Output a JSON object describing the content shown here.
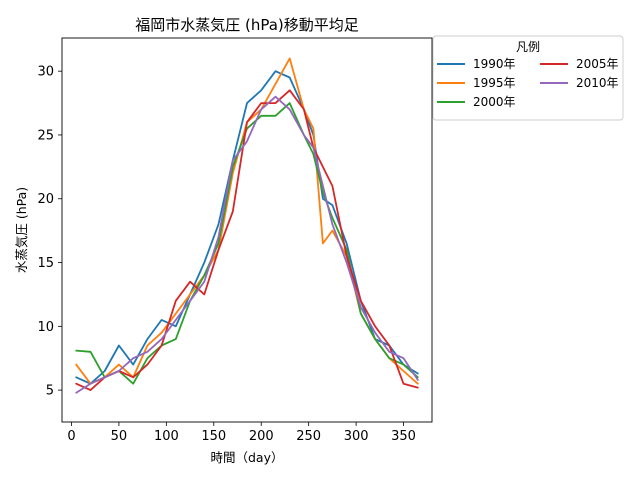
{
  "chart_data": {
    "type": "line",
    "title": "福岡市水蒸気圧 (hPa)移動平均足",
    "xlabel": "時間（day）",
    "ylabel": "水蒸気圧 (hPa)",
    "xlim": [
      -10,
      380
    ],
    "ylim": [
      2.5,
      32.6
    ],
    "xticks": [
      0,
      50,
      100,
      150,
      200,
      250,
      300,
      350
    ],
    "yticks": [
      5,
      10,
      15,
      20,
      25,
      30
    ],
    "grid": false,
    "legend": {
      "title": "凡例",
      "placement": "right-outside-top",
      "columns": 2
    },
    "x": [
      5,
      20,
      35,
      50,
      65,
      80,
      95,
      110,
      125,
      140,
      155,
      170,
      185,
      200,
      215,
      230,
      245,
      255,
      265,
      275,
      290,
      305,
      320,
      335,
      350,
      365
    ],
    "series": [
      {
        "name": "1990年",
        "color": "#1f77b4",
        "values": [
          6.0,
          5.5,
          6.5,
          8.5,
          7.0,
          9.0,
          10.5,
          10.0,
          12.5,
          15.0,
          18.0,
          23.0,
          27.5,
          28.5,
          30.0,
          29.5,
          27.0,
          25.0,
          20.0,
          19.5,
          16.5,
          12.0,
          9.0,
          8.5,
          7.0,
          6.3
        ]
      },
      {
        "name": "1995年",
        "color": "#ff7f0e",
        "values": [
          7.0,
          5.5,
          6.0,
          7.0,
          6.0,
          8.5,
          9.5,
          11.0,
          12.5,
          14.0,
          16.0,
          22.0,
          26.0,
          27.0,
          29.0,
          31.0,
          27.0,
          25.5,
          16.5,
          17.5,
          15.5,
          11.0,
          9.0,
          7.5,
          6.5,
          5.5
        ]
      },
      {
        "name": "2000年",
        "color": "#2ca02c",
        "values": [
          8.1,
          8.0,
          6.0,
          6.5,
          5.5,
          7.5,
          8.5,
          9.0,
          12.0,
          14.0,
          16.5,
          22.5,
          25.5,
          26.5,
          26.5,
          27.5,
          25.0,
          23.5,
          20.5,
          18.5,
          16.0,
          11.0,
          9.0,
          7.5,
          7.0,
          6.0
        ]
      },
      {
        "name": "2005年",
        "color": "#d62728",
        "values": [
          5.5,
          5.0,
          6.0,
          6.5,
          6.0,
          7.0,
          8.5,
          12.0,
          13.5,
          12.5,
          16.0,
          19.0,
          26.0,
          27.5,
          27.5,
          28.5,
          27.0,
          24.0,
          22.5,
          21.0,
          15.5,
          12.0,
          10.0,
          8.5,
          5.5,
          5.2
        ]
      },
      {
        "name": "2010年",
        "color": "#9467bd",
        "values": [
          4.8,
          5.5,
          6.0,
          6.5,
          7.5,
          8.0,
          9.0,
          10.5,
          12.0,
          13.5,
          17.0,
          23.0,
          24.5,
          27.0,
          28.0,
          27.0,
          25.0,
          24.0,
          21.0,
          18.0,
          15.0,
          11.5,
          9.5,
          8.0,
          7.5,
          5.8
        ]
      }
    ]
  }
}
